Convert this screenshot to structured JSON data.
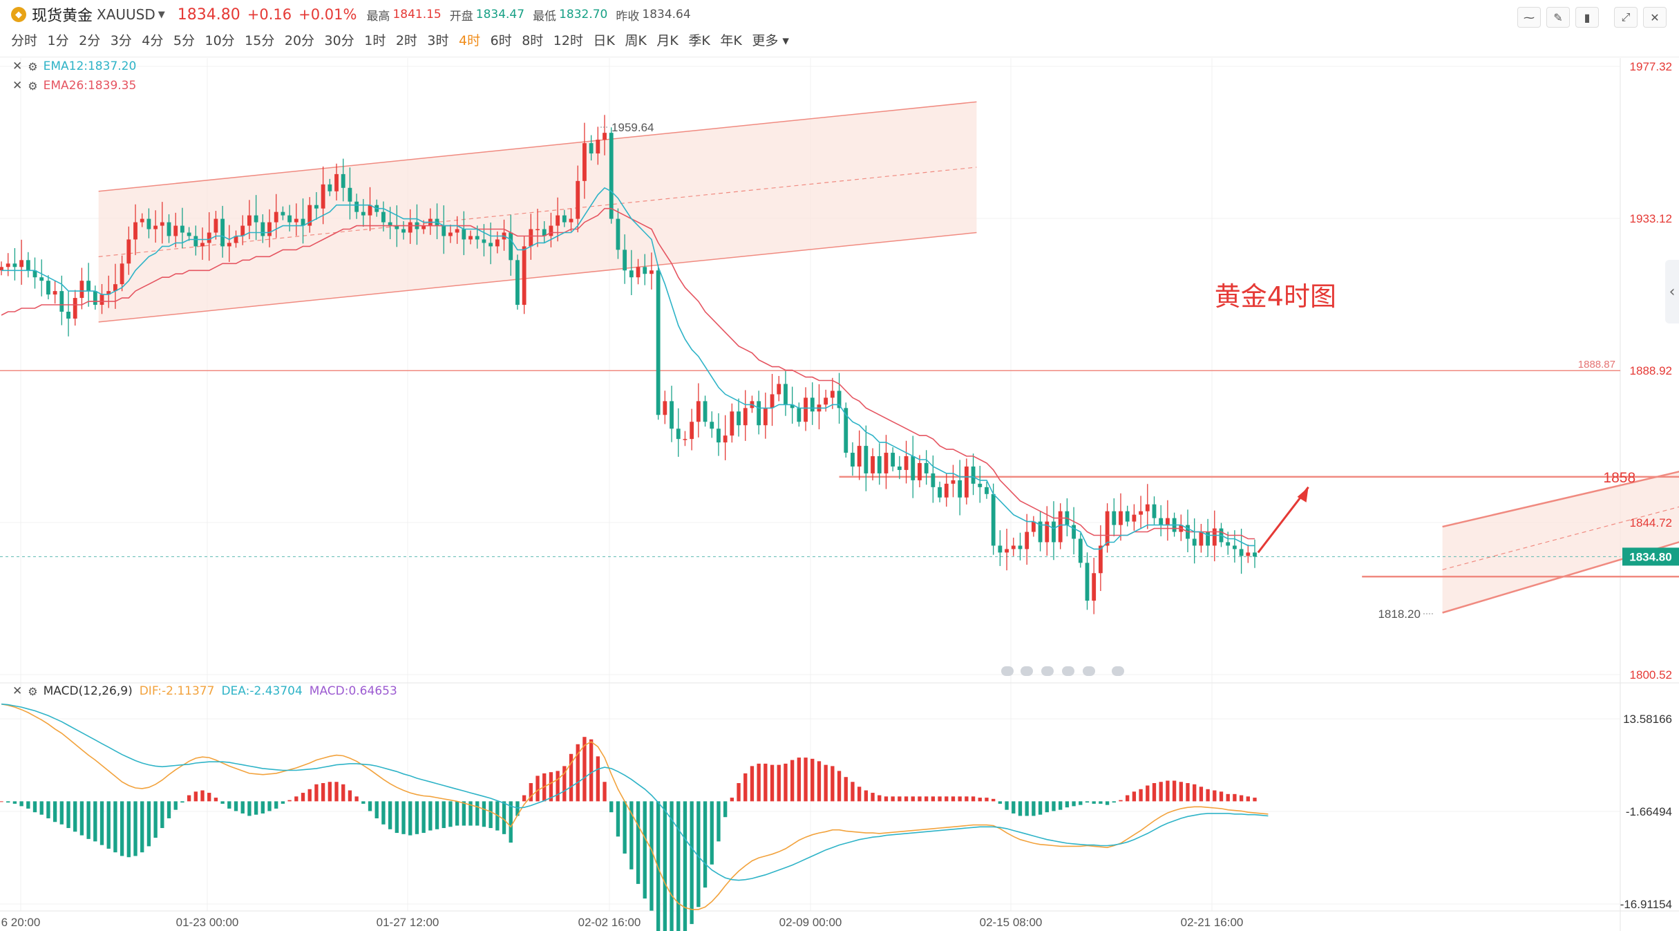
{
  "header": {
    "symbol_name": "现货黄金",
    "symbol_code": "XAUUSD",
    "price": "1834.80",
    "change": "+0.16",
    "change_pct": "+0.01%",
    "high_label": "最高",
    "high": "1841.15",
    "open_label": "开盘",
    "open": "1834.47",
    "low_label": "最低",
    "low": "1832.70",
    "prev_label": "昨收",
    "prev": "1834.64"
  },
  "timeframes": [
    "分时",
    "1分",
    "2分",
    "3分",
    "4分",
    "5分",
    "10分",
    "15分",
    "20分",
    "30分",
    "1时",
    "2时",
    "3时",
    "4时",
    "6时",
    "8时",
    "12时",
    "日K",
    "周K",
    "月K",
    "季K",
    "年K"
  ],
  "active_timeframe": "4时",
  "more_label": "更多",
  "indicators": {
    "ema12": "EMA12:1837.20",
    "ema26": "EMA26:1839.35",
    "macd_name": "MACD(12,26,9)",
    "dif": "DIF:-2.11377",
    "dea": "DEA:-2.43704",
    "macd": "MACD:0.64653"
  },
  "colors": {
    "up": "#e53935",
    "down": "#1aa38a",
    "ema12": "#2eb3c7",
    "ema26": "#e55460",
    "dif": "#f2a23c",
    "dea": "#2eb3c7",
    "macd_text": "#9c5bd1",
    "channel": "#f7d3c8"
  },
  "chart_data": [
    {
      "type": "candlestick",
      "title": "黄金4时图",
      "ylim": [
        1800.52,
        1977.32
      ],
      "y_ticks": [
        "1977.32",
        "1933.12",
        "1888.92",
        "1844.72",
        "1800.52"
      ],
      "x_ticks": [
        "6 20:00",
        "01-23 00:00",
        "01-27 12:00",
        "02-02 16:00",
        "02-09 00:00",
        "02-15 08:00",
        "02-21 16:00"
      ],
      "current_price_label": "1834.80",
      "resistance_line": {
        "value": 1888.87,
        "label": "1888.87",
        "color": "#e57373"
      },
      "level_1858": {
        "value": 1858,
        "label": "1858"
      },
      "support_line": {
        "value": 1829
      },
      "high_marker": {
        "value": 1959.64,
        "label": "1959.64"
      },
      "low_marker": {
        "value": 1818.2,
        "label": "1818.20"
      },
      "closes": [
        1919,
        1920,
        1919,
        1921,
        1918,
        1916,
        1915,
        1911,
        1912,
        1906,
        1904,
        1910,
        1915,
        1912,
        1908,
        1911,
        1912,
        1914,
        1920,
        1927,
        1932,
        1933,
        1930,
        1931,
        1932,
        1928,
        1931,
        1929,
        1928,
        1925,
        1926,
        1929,
        1933,
        1925,
        1926,
        1928,
        1931,
        1934,
        1932,
        1928,
        1932,
        1935,
        1934,
        1932,
        1933,
        1931,
        1937,
        1936,
        1943,
        1941,
        1946,
        1942,
        1938,
        1935,
        1934,
        1937,
        1935,
        1932,
        1931,
        1930,
        1929,
        1932,
        1930,
        1931,
        1933,
        1931,
        1928,
        1929,
        1930,
        1927,
        1928,
        1927,
        1926,
        1925,
        1927,
        1929,
        1921,
        1908,
        1925,
        1930,
        1930,
        1928,
        1931,
        1934,
        1932,
        1933,
        1944,
        1955,
        1952,
        1956,
        1958,
        1933,
        1924,
        1918,
        1916,
        1919,
        1917,
        1918,
        1876,
        1880,
        1872,
        1869,
        1869,
        1874,
        1880,
        1874,
        1872,
        1868,
        1870,
        1877,
        1873,
        1878,
        1880,
        1873,
        1878,
        1882,
        1885,
        1879,
        1878,
        1874,
        1881,
        1877,
        1879,
        1881,
        1883,
        1878,
        1865,
        1861,
        1867,
        1859,
        1864,
        1859,
        1865,
        1861,
        1860,
        1864,
        1857,
        1862,
        1859,
        1855,
        1852,
        1856,
        1857,
        1852,
        1861,
        1856,
        1855,
        1853,
        1838,
        1836,
        1837,
        1838,
        1837,
        1842,
        1845,
        1839,
        1845,
        1839,
        1848,
        1844,
        1840,
        1833,
        1822,
        1830,
        1838,
        1848,
        1844,
        1848,
        1845,
        1847,
        1848,
        1850,
        1846,
        1844,
        1846,
        1842,
        1844,
        1840,
        1838,
        1842,
        1838,
        1843,
        1839,
        1838,
        1837,
        1835,
        1836,
        1834.8
      ],
      "ema12": [
        1918,
        1918,
        1918,
        1918,
        1918,
        1918,
        1917,
        1916,
        1915,
        1914,
        1912,
        1912,
        1912,
        1912,
        1912,
        1911,
        1911,
        1912,
        1913,
        1915,
        1918,
        1920,
        1922,
        1923,
        1925,
        1925,
        1926,
        1926,
        1927,
        1927,
        1927,
        1927,
        1928,
        1928,
        1927,
        1928,
        1928,
        1929,
        1929,
        1929,
        1929,
        1930,
        1931,
        1931,
        1931,
        1931,
        1932,
        1933,
        1934,
        1935,
        1937,
        1937,
        1937,
        1937,
        1937,
        1937,
        1936,
        1936,
        1935,
        1934,
        1933,
        1933,
        1933,
        1932,
        1932,
        1932,
        1931,
        1931,
        1931,
        1930,
        1930,
        1930,
        1929,
        1928,
        1928,
        1928,
        1927,
        1924,
        1924,
        1925,
        1926,
        1926,
        1927,
        1928,
        1929,
        1929,
        1931,
        1934,
        1937,
        1940,
        1942,
        1941,
        1939,
        1936,
        1933,
        1931,
        1929,
        1927,
        1919,
        1914,
        1908,
        1902,
        1898,
        1895,
        1893,
        1890,
        1887,
        1884,
        1882,
        1881,
        1880,
        1879,
        1879,
        1878,
        1878,
        1878,
        1879,
        1879,
        1879,
        1878,
        1878,
        1878,
        1878,
        1878,
        1879,
        1879,
        1876,
        1874,
        1873,
        1871,
        1870,
        1868,
        1868,
        1867,
        1866,
        1865,
        1864,
        1863,
        1863,
        1861,
        1860,
        1859,
        1859,
        1858,
        1858,
        1858,
        1857,
        1857,
        1853,
        1851,
        1849,
        1847,
        1846,
        1845,
        1845,
        1844,
        1844,
        1843,
        1844,
        1844,
        1843,
        1842,
        1838,
        1837,
        1837,
        1839,
        1839,
        1841,
        1841,
        1842,
        1843,
        1844,
        1844,
        1844,
        1844,
        1844,
        1844,
        1843,
        1842,
        1842,
        1841,
        1841,
        1841,
        1840,
        1840,
        1839,
        1838,
        1838
      ],
      "ema26": [
        1905,
        1906,
        1906,
        1907,
        1907,
        1907,
        1908,
        1908,
        1908,
        1908,
        1908,
        1908,
        1908,
        1909,
        1909,
        1909,
        1909,
        1909,
        1910,
        1910,
        1912,
        1913,
        1914,
        1915,
        1916,
        1916,
        1917,
        1917,
        1918,
        1918,
        1918,
        1918,
        1919,
        1920,
        1920,
        1920,
        1921,
        1921,
        1922,
        1922,
        1922,
        1923,
        1924,
        1924,
        1924,
        1925,
        1925,
        1926,
        1927,
        1928,
        1929,
        1930,
        1930,
        1931,
        1931,
        1931,
        1931,
        1931,
        1931,
        1931,
        1931,
        1931,
        1931,
        1931,
        1931,
        1931,
        1931,
        1931,
        1931,
        1931,
        1931,
        1930,
        1930,
        1930,
        1930,
        1930,
        1929,
        1928,
        1928,
        1928,
        1928,
        1928,
        1929,
        1929,
        1929,
        1930,
        1930,
        1932,
        1933,
        1934,
        1936,
        1936,
        1935,
        1934,
        1933,
        1932,
        1931,
        1930,
        1926,
        1923,
        1920,
        1916,
        1913,
        1911,
        1909,
        1906,
        1904,
        1902,
        1900,
        1898,
        1896,
        1895,
        1894,
        1892,
        1891,
        1890,
        1890,
        1889,
        1889,
        1888,
        1887,
        1887,
        1886,
        1886,
        1886,
        1885,
        1883,
        1881,
        1880,
        1878,
        1877,
        1876,
        1875,
        1874,
        1873,
        1872,
        1871,
        1870,
        1870,
        1869,
        1867,
        1866,
        1866,
        1865,
        1864,
        1864,
        1863,
        1862,
        1860,
        1857,
        1855,
        1853,
        1851,
        1850,
        1849,
        1848,
        1847,
        1846,
        1846,
        1846,
        1845,
        1844,
        1842,
        1841,
        1841,
        1841,
        1841,
        1841,
        1841,
        1842,
        1842,
        1842,
        1843,
        1843,
        1843,
        1843,
        1843,
        1842,
        1842,
        1842,
        1842,
        1842,
        1842,
        1841,
        1841,
        1841,
        1840,
        1840
      ]
    },
    {
      "type": "macd",
      "ylim": [
        -16.91154,
        13.58166
      ],
      "y_ticks": [
        "13.58166",
        "-1.66494",
        "-16.91154"
      ],
      "dif": [
        16,
        15.8,
        15.5,
        15.1,
        14.6,
        14,
        13.4,
        12.7,
        11.9,
        11.2,
        10.3,
        9.4,
        8.5,
        7.6,
        6.8,
        5.9,
        5,
        4.1,
        3.2,
        2.6,
        2.2,
        2.1,
        2.3,
        2.8,
        3.5,
        4.4,
        5.2,
        5.9,
        6.6,
        7.1,
        7.3,
        7.2,
        6.8,
        6.3,
        5.8,
        5.4,
        5,
        4.6,
        4.5,
        4.4,
        4.5,
        4.6,
        4.9,
        5.2,
        5.5,
        5.9,
        6.3,
        6.8,
        7.1,
        7.4,
        7.6,
        7.5,
        7.1,
        6.6,
        5.9,
        5.2,
        4.4,
        3.6,
        2.9,
        2.3,
        1.8,
        1.4,
        1.1,
        0.9,
        0.8,
        0.6,
        0.4,
        0.2,
        0,
        -0.3,
        -0.6,
        -0.9,
        -1.3,
        -1.7,
        -2.3,
        -3,
        -4.2,
        -2.3,
        -0.5,
        0.8,
        1.8,
        2.4,
        3,
        3.6,
        4.6,
        6.3,
        7.8,
        9.2,
        9.8,
        9,
        7.2,
        4.5,
        2,
        0,
        -2,
        -4,
        -6,
        -8,
        -11,
        -13.5,
        -15.5,
        -16.8,
        -17.5,
        -17.8,
        -17.8,
        -17.4,
        -16.5,
        -15.3,
        -13.9,
        -12.6,
        -11.5,
        -10.6,
        -9.8,
        -9.3,
        -9,
        -8.7,
        -8.3,
        -7.8,
        -7.1,
        -6.4,
        -5.9,
        -5.5,
        -5.2,
        -5,
        -4.7,
        -4.7,
        -4.9,
        -5,
        -5.1,
        -5.2,
        -5.2,
        -5.3,
        -5.2,
        -5.1,
        -5,
        -4.9,
        -4.8,
        -4.7,
        -4.6,
        -4.5,
        -4.4,
        -4.3,
        -4.2,
        -4.1,
        -4,
        -3.9,
        -3.9,
        -3.9,
        -4,
        -4.5,
        -5.2,
        -5.8,
        -6.3,
        -6.6,
        -6.9,
        -7.1,
        -7.2,
        -7.3,
        -7.4,
        -7.4,
        -7.4,
        -7.4,
        -7.3,
        -7.4,
        -7.5,
        -7.6,
        -7.3,
        -6.9,
        -6.2,
        -5.5,
        -4.8,
        -4,
        -3.2,
        -2.5,
        -1.9,
        -1.5,
        -1.2,
        -1,
        -0.9,
        -0.9,
        -1,
        -1.1,
        -1.2,
        -1.4,
        -1.5,
        -1.6,
        -1.8,
        -1.9,
        -2,
        -2.1
      ],
      "dea": [
        16,
        15.9,
        15.7,
        15.5,
        15.2,
        14.9,
        14.5,
        14.1,
        13.6,
        13.1,
        12.5,
        11.9,
        11.3,
        10.7,
        10.1,
        9.5,
        8.9,
        8.3,
        7.7,
        7.2,
        6.7,
        6.3,
        6,
        5.8,
        5.7,
        5.8,
        5.9,
        6,
        6.1,
        6.3,
        6.4,
        6.5,
        6.5,
        6.5,
        6.4,
        6.2,
        6,
        5.8,
        5.6,
        5.4,
        5.3,
        5.2,
        5.1,
        5.1,
        5.1,
        5.2,
        5.3,
        5.4,
        5.6,
        5.8,
        6,
        6.1,
        6.2,
        6.2,
        6.1,
        6,
        5.8,
        5.5,
        5.2,
        4.9,
        4.5,
        4.2,
        3.8,
        3.5,
        3.2,
        2.9,
        2.6,
        2.3,
        2,
        1.7,
        1.4,
        1.1,
        0.8,
        0.5,
        0.1,
        -0.3,
        -0.8,
        -1.1,
        -1,
        -0.7,
        -0.3,
        0.1,
        0.6,
        1.1,
        1.7,
        2.4,
        3.1,
        3.9,
        4.7,
        5.3,
        5.6,
        5.4,
        4.9,
        4.3,
        3.6,
        2.8,
        2,
        1,
        -0.2,
        -1.5,
        -3,
        -4.6,
        -6.2,
        -7.7,
        -9.1,
        -10.3,
        -11.3,
        -12,
        -12.6,
        -12.9,
        -13,
        -12.9,
        -12.7,
        -12.4,
        -12.1,
        -11.7,
        -11.3,
        -10.9,
        -10.5,
        -10,
        -9.5,
        -9,
        -8.5,
        -8,
        -7.6,
        -7.2,
        -6.9,
        -6.6,
        -6.3,
        -6.1,
        -5.9,
        -5.8,
        -5.6,
        -5.5,
        -5.4,
        -5.3,
        -5.2,
        -5.1,
        -5,
        -4.9,
        -4.8,
        -4.7,
        -4.6,
        -4.5,
        -4.4,
        -4.3,
        -4.2,
        -4.2,
        -4.2,
        -4.3,
        -4.5,
        -4.8,
        -5.1,
        -5.4,
        -5.7,
        -6,
        -6.3,
        -6.5,
        -6.7,
        -6.9,
        -7,
        -7.1,
        -7.2,
        -7.2,
        -7.3,
        -7.3,
        -7.2,
        -7,
        -6.7,
        -6.3,
        -5.8,
        -5.3,
        -4.7,
        -4.1,
        -3.6,
        -3.2,
        -2.8,
        -2.5,
        -2.3,
        -2.1,
        -2,
        -2,
        -2,
        -2,
        -2.1,
        -2.1,
        -2.2,
        -2.2,
        -2.3,
        -2.4
      ]
    }
  ]
}
